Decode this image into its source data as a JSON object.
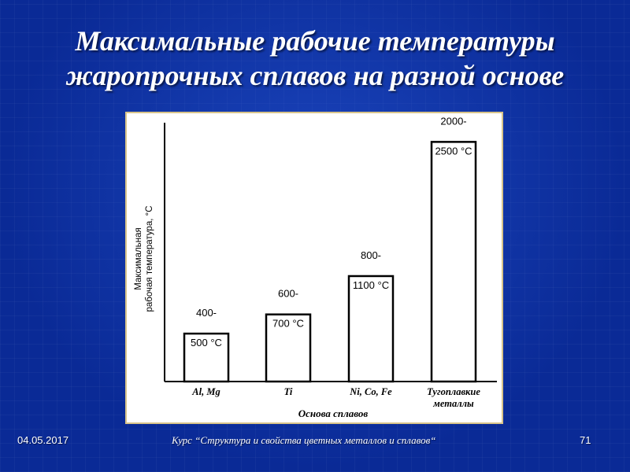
{
  "slide": {
    "title_line1": "Максимальные рабочие температуры",
    "title_line2": "жаропрочных сплавов на разной основе",
    "footer_date": "04.05.2017",
    "footer_course": "Курс “Структура и свойства цветных металлов и сплавов“",
    "footer_page": "71",
    "colors": {
      "background": "#0a2a96",
      "title": "#ffffff",
      "frame_border": "#d8c48a",
      "chart_ink": "#000000"
    }
  },
  "chart_data": {
    "type": "bar",
    "title": "",
    "xlabel": "Основа сплавов",
    "ylabel_line1": "Максимальная",
    "ylabel_line2": "рабочая температура, °С",
    "grid": false,
    "categories": [
      {
        "line1": "Al, Mg",
        "line2": ""
      },
      {
        "line1": "Ti",
        "line2": ""
      },
      {
        "line1": "Ni, Co, Fe",
        "line2": ""
      },
      {
        "line1": "Тугоплавкие",
        "line2": "металлы"
      }
    ],
    "values": [
      500,
      700,
      1100,
      2500
    ],
    "labels": [
      {
        "line1": "400-",
        "line2": "500 °С"
      },
      {
        "line1": "600-",
        "line2": "700 °С"
      },
      {
        "line1": "800-",
        "line2": "1100 °С"
      },
      {
        "line1": "2000-",
        "line2": "2500 °С"
      }
    ],
    "ylim": [
      0,
      2700
    ]
  }
}
